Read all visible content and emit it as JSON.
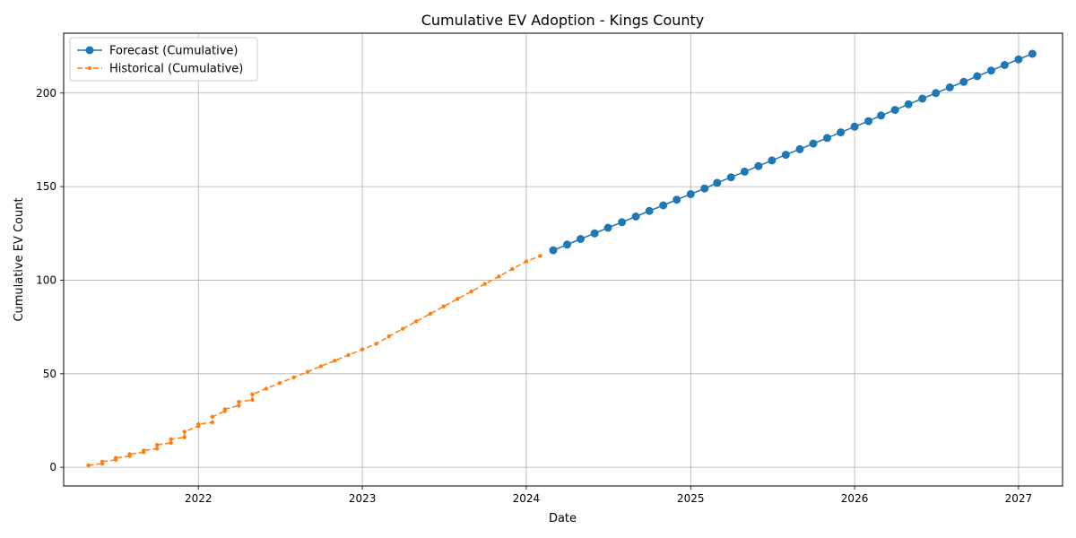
{
  "chart_data": {
    "type": "line",
    "title": "Cumulative EV Adoption - Kings County",
    "xlabel": "Date",
    "ylabel": "Cumulative EV Count",
    "xlim": [
      "2021-03-07",
      "2027-04-09"
    ],
    "ylim": [
      -10,
      232
    ],
    "x_ticks": [
      "2022",
      "2023",
      "2024",
      "2025",
      "2026",
      "2027"
    ],
    "y_ticks": [
      0,
      50,
      100,
      150,
      200
    ],
    "grid": true,
    "legend_position": "top-left",
    "series": [
      {
        "name": "Forecast (Cumulative)",
        "color": "#1f77b4",
        "style": "solid",
        "marker": "circle",
        "points": [
          [
            "2024-03-01",
            116
          ],
          [
            "2024-04-01",
            119
          ],
          [
            "2024-05-01",
            122
          ],
          [
            "2024-06-01",
            125
          ],
          [
            "2024-07-01",
            128
          ],
          [
            "2024-08-01",
            131
          ],
          [
            "2024-09-01",
            134
          ],
          [
            "2024-10-01",
            137
          ],
          [
            "2024-11-01",
            140
          ],
          [
            "2024-12-01",
            143
          ],
          [
            "2025-01-01",
            146
          ],
          [
            "2025-02-01",
            149
          ],
          [
            "2025-03-01",
            152
          ],
          [
            "2025-04-01",
            155
          ],
          [
            "2025-05-01",
            158
          ],
          [
            "2025-06-01",
            161
          ],
          [
            "2025-07-01",
            164
          ],
          [
            "2025-08-01",
            167
          ],
          [
            "2025-09-01",
            170
          ],
          [
            "2025-10-01",
            173
          ],
          [
            "2025-11-01",
            176
          ],
          [
            "2025-12-01",
            179
          ],
          [
            "2026-01-01",
            182
          ],
          [
            "2026-02-01",
            185
          ],
          [
            "2026-03-01",
            188
          ],
          [
            "2026-04-01",
            191
          ],
          [
            "2026-05-01",
            194
          ],
          [
            "2026-06-01",
            197
          ],
          [
            "2026-07-01",
            200
          ],
          [
            "2026-08-01",
            203
          ],
          [
            "2026-09-01",
            206
          ],
          [
            "2026-10-01",
            209
          ],
          [
            "2026-11-01",
            212
          ],
          [
            "2026-12-01",
            215
          ],
          [
            "2027-01-01",
            218
          ],
          [
            "2027-02-01",
            221
          ]
        ]
      },
      {
        "name": "Historical (Cumulative)",
        "color": "#ff7f0e",
        "style": "dashed",
        "marker": "small-circle",
        "points": [
          [
            "2021-05-01",
            1
          ],
          [
            "2021-06-01",
            2
          ],
          [
            "2021-06-01",
            3
          ],
          [
            "2021-07-01",
            4
          ],
          [
            "2021-07-01",
            5
          ],
          [
            "2021-08-01",
            6
          ],
          [
            "2021-08-01",
            7
          ],
          [
            "2021-09-01",
            8
          ],
          [
            "2021-09-01",
            9
          ],
          [
            "2021-10-01",
            10
          ],
          [
            "2021-10-01",
            12
          ],
          [
            "2021-11-01",
            13
          ],
          [
            "2021-11-01",
            15
          ],
          [
            "2021-12-01",
            16
          ],
          [
            "2021-12-01",
            19
          ],
          [
            "2022-01-01",
            22
          ],
          [
            "2022-01-01",
            23
          ],
          [
            "2022-02-01",
            24
          ],
          [
            "2022-02-01",
            27
          ],
          [
            "2022-03-01",
            30
          ],
          [
            "2022-03-01",
            31
          ],
          [
            "2022-04-01",
            33
          ],
          [
            "2022-04-01",
            35
          ],
          [
            "2022-05-01",
            36
          ],
          [
            "2022-05-01",
            39
          ],
          [
            "2022-06-01",
            42
          ],
          [
            "2022-07-01",
            45
          ],
          [
            "2022-08-01",
            48
          ],
          [
            "2022-09-01",
            51
          ],
          [
            "2022-10-01",
            54
          ],
          [
            "2022-11-01",
            57
          ],
          [
            "2022-12-01",
            60
          ],
          [
            "2023-01-01",
            63
          ],
          [
            "2023-02-01",
            66
          ],
          [
            "2023-03-01",
            70
          ],
          [
            "2023-04-01",
            74
          ],
          [
            "2023-05-01",
            78
          ],
          [
            "2023-06-01",
            82
          ],
          [
            "2023-07-01",
            86
          ],
          [
            "2023-08-01",
            90
          ],
          [
            "2023-09-01",
            94
          ],
          [
            "2023-10-01",
            98
          ],
          [
            "2023-11-01",
            102
          ],
          [
            "2023-12-01",
            106
          ],
          [
            "2024-01-01",
            110
          ],
          [
            "2024-02-01",
            113
          ]
        ]
      }
    ]
  }
}
